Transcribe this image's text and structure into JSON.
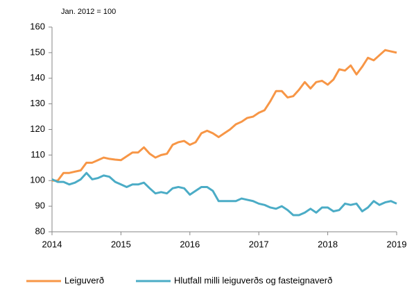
{
  "chart_data": {
    "type": "line",
    "subtitle": "Jan. 2012 = 100",
    "x": [
      2014,
      2014.083,
      2014.167,
      2014.25,
      2014.333,
      2014.417,
      2014.5,
      2014.583,
      2014.667,
      2014.75,
      2014.833,
      2014.917,
      2015,
      2015.083,
      2015.167,
      2015.25,
      2015.333,
      2015.417,
      2015.5,
      2015.583,
      2015.667,
      2015.75,
      2015.833,
      2015.917,
      2016,
      2016.083,
      2016.167,
      2016.25,
      2016.333,
      2016.417,
      2016.5,
      2016.583,
      2016.667,
      2016.75,
      2016.833,
      2016.917,
      2017,
      2017.083,
      2017.167,
      2017.25,
      2017.333,
      2017.417,
      2017.5,
      2017.583,
      2017.667,
      2017.75,
      2017.833,
      2017.917,
      2018,
      2018.083,
      2018.167,
      2018.25,
      2018.333,
      2018.417,
      2018.5,
      2018.583,
      2018.667,
      2018.75,
      2018.833,
      2018.917,
      2019
    ],
    "series": [
      {
        "name": "Leiguverð",
        "color": "#f79646",
        "values": [
          100,
          100,
          103,
          103,
          103.5,
          104,
          107,
          107,
          108,
          109,
          108.5,
          108.2,
          108,
          109.5,
          111,
          111,
          113,
          110.5,
          109,
          110,
          110.5,
          114,
          115,
          115.5,
          114,
          115,
          118.5,
          119.5,
          118.5,
          117,
          118.5,
          120,
          122,
          123,
          124.5,
          125,
          126.5,
          127.5,
          131,
          135,
          135,
          132.5,
          133,
          135.5,
          138.5,
          136,
          138.5,
          139,
          137.5,
          139.5,
          143.5,
          143,
          145,
          141.5,
          144.5,
          148,
          147,
          149,
          151,
          150.5,
          150
        ]
      },
      {
        "name": "Hlutfall milli leiguverðs og fasteignaverð",
        "color": "#4bacc6",
        "values": [
          100.5,
          99.5,
          99.5,
          98.5,
          99.2,
          100.5,
          103,
          100.5,
          101,
          102,
          101.5,
          99.5,
          98.5,
          97.5,
          98.5,
          98.5,
          99.2,
          97,
          95,
          95.5,
          95,
          97,
          97.5,
          97,
          94.5,
          96,
          97.5,
          97.5,
          96,
          92,
          92,
          92,
          92,
          93,
          92.5,
          92,
          91,
          90.5,
          89.5,
          89,
          90,
          88.5,
          86.5,
          86.5,
          87.5,
          89,
          87.5,
          89.5,
          89.5,
          88,
          88.5,
          91,
          90.5,
          91,
          88,
          89.5,
          92,
          90.5,
          91.5,
          92,
          91
        ]
      }
    ],
    "xlim": [
      2014,
      2019
    ],
    "xticks": [
      2014,
      2015,
      2016,
      2017,
      2018,
      2019
    ],
    "ylim": [
      80,
      160
    ],
    "yticks": [
      80,
      90,
      100,
      110,
      120,
      130,
      140,
      150,
      160
    ],
    "grid": false,
    "legend": "bottom"
  }
}
